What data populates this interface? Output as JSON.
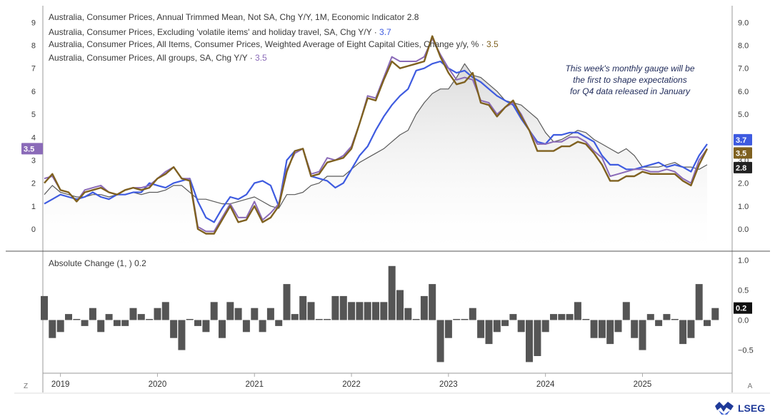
{
  "chart_data": [
    {
      "type": "line",
      "title": "",
      "x": [
        "2018-11",
        "2018-12",
        "2019-01",
        "2019-02",
        "2019-03",
        "2019-04",
        "2019-05",
        "2019-06",
        "2019-07",
        "2019-08",
        "2019-09",
        "2019-10",
        "2019-11",
        "2019-12",
        "2020-01",
        "2020-02",
        "2020-03",
        "2020-04",
        "2020-05",
        "2020-06",
        "2020-07",
        "2020-08",
        "2020-09",
        "2020-10",
        "2020-11",
        "2020-12",
        "2021-01",
        "2021-02",
        "2021-03",
        "2021-04",
        "2021-05",
        "2021-06",
        "2021-07",
        "2021-08",
        "2021-09",
        "2021-10",
        "2021-11",
        "2021-12",
        "2022-01",
        "2022-02",
        "2022-03",
        "2022-04",
        "2022-05",
        "2022-06",
        "2022-07",
        "2022-08",
        "2022-09",
        "2022-10",
        "2022-11",
        "2022-12",
        "2023-01",
        "2023-02",
        "2023-03",
        "2023-04",
        "2023-05",
        "2023-06",
        "2023-07",
        "2023-08",
        "2023-09",
        "2023-10",
        "2023-11",
        "2023-12",
        "2024-01",
        "2024-02",
        "2024-03",
        "2024-04",
        "2024-05",
        "2024-06",
        "2024-07",
        "2024-08",
        "2024-09",
        "2024-10",
        "2024-11",
        "2024-12",
        "2025-01",
        "2025-02",
        "2025-03",
        "2025-04",
        "2025-05",
        "2025-06",
        "2025-07",
        "2025-08",
        "2025-09"
      ],
      "x_tick_labels": [
        "2019",
        "2020",
        "2021",
        "2022",
        "2023",
        "2024",
        "2025"
      ],
      "left_axis_ticks": [
        "9",
        "8",
        "7",
        "6",
        "5",
        "4",
        "3",
        "2",
        "1",
        "0"
      ],
      "right_axis_ticks": [
        "9.0",
        "8.0",
        "7.0",
        "6.0",
        "5.0",
        "4.0",
        "3.0",
        "2.0",
        "1.0",
        "0.0"
      ],
      "ylim": [
        -0.9,
        9.6
      ],
      "series": [
        {
          "name": "Australia, Consumer Prices, Annual Trimmed Mean, Not SA, Chg Y/Y, 1M, Economic Indicator",
          "last_value": "2.8",
          "color": "#5a5a5a",
          "style": "area",
          "values": [
            1.5,
            1.9,
            1.6,
            1.5,
            1.4,
            1.4,
            1.5,
            1.5,
            1.4,
            1.5,
            1.5,
            1.6,
            1.5,
            1.6,
            1.6,
            1.7,
            1.9,
            1.9,
            1.6,
            1.3,
            1.3,
            1.2,
            1.1,
            1.1,
            1.2,
            1.3,
            1.4,
            1.2,
            1.0,
            0.9,
            1.5,
            1.5,
            1.6,
            1.9,
            2.0,
            2.3,
            2.3,
            2.3,
            2.6,
            2.9,
            3.1,
            3.3,
            3.5,
            3.8,
            4.1,
            4.3,
            5.0,
            5.5,
            5.9,
            6.1,
            6.1,
            6.6,
            7.2,
            6.7,
            6.6,
            6.3,
            6.0,
            5.6,
            5.5,
            5.4,
            5.1,
            4.8,
            4.2,
            3.8,
            3.9,
            4.1,
            4.3,
            4.2,
            3.9,
            3.7,
            3.5,
            3.3,
            3.5,
            3.2,
            2.7,
            2.7,
            2.7,
            2.8,
            2.9,
            2.7,
            2.7,
            2.6,
            2.8
          ]
        },
        {
          "name": "Australia, Consumer Prices, Excluding 'volatile items' and holiday travel, SA, Chg Y/Y",
          "last_value": "3.7",
          "color": "#3e5be0",
          "style": "line",
          "values": [
            1.1,
            1.3,
            1.5,
            1.4,
            1.3,
            1.4,
            1.6,
            1.4,
            1.3,
            1.5,
            1.5,
            1.6,
            1.6,
            2.0,
            1.9,
            1.8,
            2.0,
            2.1,
            2.2,
            1.2,
            0.5,
            0.3,
            0.9,
            1.4,
            1.3,
            1.5,
            2.0,
            2.1,
            1.9,
            1.0,
            3.0,
            3.4,
            3.5,
            2.3,
            2.2,
            2.1,
            1.8,
            2.0,
            2.6,
            3.2,
            3.6,
            4.3,
            4.9,
            5.4,
            5.8,
            6.1,
            6.9,
            7.0,
            7.2,
            7.3,
            7.0,
            6.8,
            6.9,
            6.6,
            6.4,
            6.1,
            5.8,
            5.6,
            5.4,
            4.8,
            4.3,
            3.8,
            3.7,
            4.1,
            4.1,
            4.2,
            4.2,
            4.0,
            3.8,
            3.2,
            2.8,
            2.8,
            2.6,
            2.6,
            2.7,
            2.8,
            2.9,
            2.7,
            2.8,
            2.7,
            2.5,
            3.2,
            3.7
          ]
        },
        {
          "name": "Australia, Consumer Prices, All Items, Consumer Prices, Weighted Average of Eight Capital Cities, Change y/y, %",
          "last_value": "3.5",
          "color": "#7f6120",
          "style": "line",
          "values": [
            2.0,
            2.4,
            1.7,
            1.6,
            1.2,
            1.6,
            1.7,
            1.8,
            1.6,
            1.5,
            1.7,
            1.8,
            1.7,
            1.8,
            2.2,
            2.4,
            2.7,
            2.2,
            2.1,
            0.0,
            -0.2,
            -0.2,
            0.4,
            1.0,
            0.3,
            0.4,
            1.0,
            0.3,
            0.5,
            1.0,
            2.5,
            3.4,
            3.5,
            2.3,
            2.4,
            2.9,
            3.0,
            3.1,
            3.5,
            4.6,
            5.7,
            5.6,
            6.5,
            7.3,
            7.0,
            7.1,
            7.2,
            7.3,
            8.4,
            7.5,
            6.8,
            6.3,
            6.4,
            6.8,
            5.5,
            5.4,
            4.9,
            5.3,
            5.6,
            4.9,
            4.3,
            3.4,
            3.4,
            3.4,
            3.6,
            3.6,
            3.8,
            3.7,
            3.3,
            2.8,
            2.1,
            2.1,
            2.3,
            2.3,
            2.5,
            2.4,
            2.4,
            2.4,
            2.4,
            2.1,
            1.9,
            2.8,
            3.5
          ]
        },
        {
          "name": "Australia, Consumer Prices, All groups, SA, Chg Y/Y",
          "last_value": "3.5",
          "color": "#8a6ab8",
          "style": "line",
          "values": [
            2.2,
            2.3,
            1.7,
            1.6,
            1.2,
            1.7,
            1.8,
            1.9,
            1.6,
            1.5,
            1.7,
            1.8,
            1.8,
            1.9,
            2.2,
            2.5,
            2.7,
            2.2,
            2.2,
            0.1,
            -0.1,
            -0.1,
            0.5,
            1.1,
            0.5,
            0.5,
            1.2,
            0.4,
            0.7,
            1.1,
            2.6,
            3.3,
            3.5,
            2.4,
            2.5,
            3.1,
            3.0,
            3.2,
            3.6,
            4.6,
            5.8,
            5.7,
            6.6,
            7.5,
            7.3,
            7.3,
            7.3,
            7.5,
            8.3,
            7.6,
            7.0,
            6.5,
            6.6,
            6.5,
            5.6,
            5.5,
            5.0,
            5.3,
            5.5,
            5.0,
            4.3,
            3.7,
            3.7,
            3.8,
            3.8,
            4.0,
            4.0,
            3.8,
            3.4,
            3.1,
            2.3,
            2.4,
            2.5,
            2.6,
            2.6,
            2.5,
            2.5,
            2.6,
            2.5,
            2.2,
            2.0,
            3.0,
            3.5
          ]
        }
      ],
      "annotation": "This week's monthly gauge will be the first to shape expectations for Q4 data released in January"
    },
    {
      "type": "bar",
      "title": "Absolute Change (1, ) 0.2",
      "legend_label": "Absolute Change (1, )",
      "last_value": "0.2",
      "right_axis_ticks": [
        "1.0",
        "0.5",
        "0.0",
        "−0.5"
      ],
      "ylim": [
        -0.85,
        1.1
      ],
      "color": "#555555",
      "values": [
        0.4,
        -0.3,
        -0.2,
        0.1,
        0.0,
        -0.1,
        0.2,
        -0.2,
        0.1,
        -0.1,
        -0.1,
        0.2,
        0.1,
        0.0,
        0.2,
        0.3,
        -0.3,
        -0.5,
        0.0,
        -0.1,
        -0.2,
        0.3,
        -0.3,
        0.3,
        0.2,
        -0.2,
        0.2,
        -0.2,
        0.2,
        -0.1,
        0.6,
        0.1,
        0.4,
        0.3,
        0.0,
        0.0,
        0.4,
        0.4,
        0.3,
        0.3,
        0.3,
        0.3,
        0.3,
        0.9,
        0.5,
        0.2,
        0.0,
        0.4,
        0.6,
        -0.7,
        -0.3,
        0.0,
        0.0,
        0.2,
        -0.3,
        -0.4,
        -0.2,
        -0.1,
        0.1,
        -0.2,
        -0.7,
        -0.6,
        -0.2,
        0.1,
        0.1,
        0.1,
        0.3,
        0.0,
        -0.3,
        -0.3,
        -0.4,
        -0.2,
        0.3,
        -0.3,
        -0.5,
        0.1,
        -0.1,
        0.1,
        0.0,
        -0.4,
        -0.3,
        0.6,
        -0.1,
        0.2
      ]
    }
  ],
  "footer": {
    "left_button": "Z",
    "right_button": "A",
    "brand": "LSEG"
  }
}
